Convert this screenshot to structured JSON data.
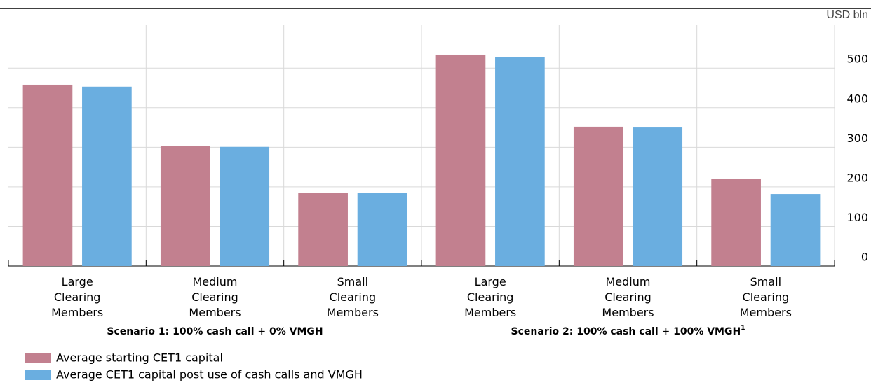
{
  "chart_data": {
    "type": "bar",
    "y_unit": "USD bln",
    "categories": [
      "Large Clearing Members",
      "Medium Clearing Members",
      "Small Clearing Members",
      "Large Clearing Members",
      "Medium Clearing Members",
      "Small Clearing Members"
    ],
    "groups": [
      {
        "label": "Scenario 1: 100% cash call + 0% VMGH",
        "span": [
          0,
          2
        ]
      },
      {
        "label": "Scenario 2: 100% cash call + 100% VMGH",
        "footnote": "1",
        "span": [
          3,
          5
        ]
      }
    ],
    "series": [
      {
        "name": "Average starting CET1 capital",
        "color": "#c2808f",
        "values": [
          458,
          303,
          184,
          534,
          352,
          221
        ]
      },
      {
        "name": "Average CET1 capital post use of cash calls and VMGH",
        "color": "#6aaee0",
        "values": [
          453,
          301,
          184,
          527,
          350,
          182
        ]
      }
    ],
    "ylim": [
      0,
      610
    ],
    "yticks": [
      0,
      100,
      200,
      300,
      400,
      500
    ],
    "grid": true,
    "legend": "bottom-left"
  }
}
